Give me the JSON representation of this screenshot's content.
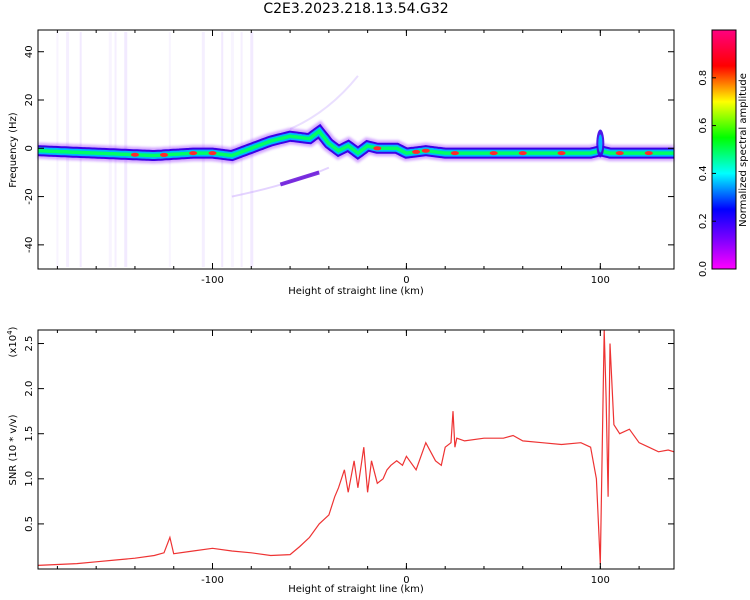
{
  "title": "C2E3.2023.218.13.54.G32",
  "chart_data": [
    {
      "type": "heatmap",
      "xlabel": "Height of straight line (km)",
      "ylabel": "Frequency (Hz)",
      "xlim": [
        -190,
        138
      ],
      "ylim": [
        -50,
        49
      ],
      "xticks": [
        -100,
        0,
        100
      ],
      "yticks": [
        -40,
        -20,
        0,
        20,
        40
      ],
      "ridge": {
        "x": [
          -190,
          -160,
          -130,
          -110,
          -100,
          -90,
          -80,
          -70,
          -60,
          -50,
          -45,
          -40,
          -35,
          -30,
          -25,
          -20,
          -15,
          -10,
          -5,
          0,
          10,
          20,
          40,
          60,
          80,
          95,
          100,
          105,
          120,
          138
        ],
        "y": [
          -1,
          -2,
          -3,
          -2,
          -2,
          -3,
          0,
          3,
          5,
          4,
          7,
          2,
          -1,
          1,
          -2,
          1,
          0,
          0,
          0,
          -2,
          -1,
          -2,
          -2,
          -2,
          -2,
          -2,
          -1,
          -2,
          -2,
          -2
        ]
      },
      "colorbar": {
        "label": "Normalized spectral amplitude",
        "range": [
          0,
          1
        ],
        "ticks": [
          "0.0",
          "0.2",
          "0.4",
          "0.6",
          "0.8"
        ],
        "colors": [
          "#ff00ff",
          "#8000ff",
          "#0000ff",
          "#00ffff",
          "#00ff00",
          "#ffff00",
          "#ff0000",
          "#ff0080"
        ]
      }
    },
    {
      "type": "line",
      "xlabel": "Height of straight line (km)",
      "ylabel": "SNR (10 * v/v)",
      "scale_note": "(x10",
      "scale_exp": "4",
      "scale_close": ")",
      "xlim": [
        -190,
        138
      ],
      "ylim": [
        0,
        26500
      ],
      "xticks": [
        -100,
        0,
        100
      ],
      "yticks": [
        0.5,
        1.0,
        1.5,
        2.0,
        2.5
      ],
      "color": "#ee3333",
      "series": [
        {
          "x": [
            -190,
            -180,
            -170,
            -160,
            -150,
            -140,
            -130,
            -125,
            -122,
            -120,
            -110,
            -100,
            -90,
            -80,
            -70,
            -60,
            -55,
            -50,
            -45,
            -40,
            -37,
            -35,
            -32,
            -30,
            -27,
            -25,
            -22,
            -20,
            -18,
            -15,
            -12,
            -10,
            -8,
            -5,
            -2,
            0,
            5,
            10,
            15,
            18,
            20,
            23,
            24,
            25,
            26,
            30,
            40,
            50,
            55,
            60,
            70,
            80,
            90,
            95,
            98,
            100,
            102,
            103,
            104,
            105,
            107,
            110,
            115,
            120,
            125,
            130,
            135,
            138
          ],
          "y": [
            400,
            500,
            600,
            800,
            1000,
            1200,
            1500,
            1800,
            3500,
            1700,
            2000,
            2300,
            2000,
            1800,
            1500,
            1600,
            2500,
            3500,
            5000,
            6000,
            8000,
            9000,
            11000,
            8500,
            12000,
            9000,
            13500,
            8500,
            12000,
            9500,
            10000,
            11000,
            11500,
            12000,
            11500,
            12500,
            11000,
            14000,
            12000,
            11500,
            13500,
            14000,
            17500,
            13500,
            14500,
            14200,
            14500,
            14500,
            14800,
            14200,
            14000,
            13800,
            14000,
            13500,
            10000,
            500,
            26500,
            19000,
            8000,
            25000,
            16000,
            15000,
            15500,
            14000,
            13500,
            13000,
            13200,
            13000
          ]
        }
      ]
    }
  ]
}
